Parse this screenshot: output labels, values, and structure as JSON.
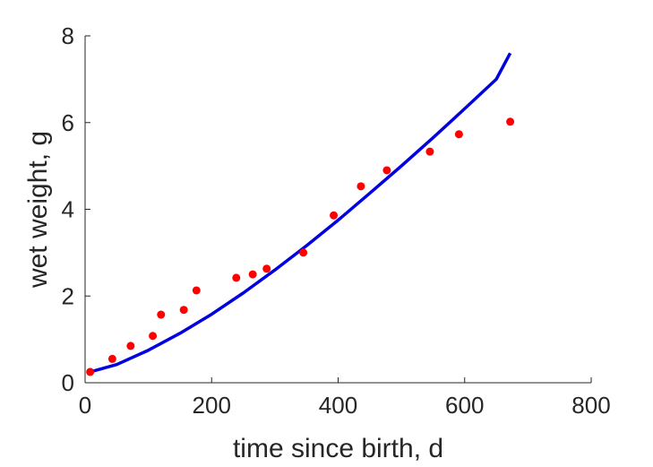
{
  "chart_data": {
    "type": "scatter",
    "xlabel": "time since birth, d",
    "ylabel": "wet weight, g",
    "xlim": [
      0,
      800
    ],
    "ylim": [
      0,
      8
    ],
    "xticks": [
      0,
      200,
      400,
      600,
      800
    ],
    "yticks": [
      0,
      2,
      4,
      6,
      8
    ],
    "xtick_labels": [
      "0",
      "200",
      "400",
      "600",
      "800"
    ],
    "ytick_labels": [
      "0",
      "2",
      "4",
      "6",
      "8"
    ],
    "grid": false,
    "legend": "none",
    "series": [
      {
        "kind": "scatter",
        "color": "#ff0000",
        "points": [
          {
            "x": 8,
            "y": 0.25
          },
          {
            "x": 43,
            "y": 0.55
          },
          {
            "x": 72,
            "y": 0.85
          },
          {
            "x": 107,
            "y": 1.08
          },
          {
            "x": 120,
            "y": 1.57
          },
          {
            "x": 156,
            "y": 1.68
          },
          {
            "x": 176,
            "y": 2.13
          },
          {
            "x": 239,
            "y": 2.42
          },
          {
            "x": 265,
            "y": 2.5
          },
          {
            "x": 287,
            "y": 2.63
          },
          {
            "x": 345,
            "y": 3.0
          },
          {
            "x": 393,
            "y": 3.86
          },
          {
            "x": 436,
            "y": 4.53
          },
          {
            "x": 477,
            "y": 4.9
          },
          {
            "x": 545,
            "y": 5.33
          },
          {
            "x": 591,
            "y": 5.73
          },
          {
            "x": 672,
            "y": 6.02
          }
        ]
      },
      {
        "kind": "line",
        "color": "#0000e0",
        "points": [
          {
            "x": 8,
            "y": 0.25
          },
          {
            "x": 50,
            "y": 0.42
          },
          {
            "x": 100,
            "y": 0.75
          },
          {
            "x": 150,
            "y": 1.14
          },
          {
            "x": 200,
            "y": 1.58
          },
          {
            "x": 250,
            "y": 2.07
          },
          {
            "x": 300,
            "y": 2.6
          },
          {
            "x": 350,
            "y": 3.16
          },
          {
            "x": 400,
            "y": 3.75
          },
          {
            "x": 450,
            "y": 4.37
          },
          {
            "x": 500,
            "y": 5.0
          },
          {
            "x": 550,
            "y": 5.65
          },
          {
            "x": 600,
            "y": 6.32
          },
          {
            "x": 650,
            "y": 7.0
          },
          {
            "x": 672,
            "y": 7.6
          }
        ]
      }
    ]
  }
}
